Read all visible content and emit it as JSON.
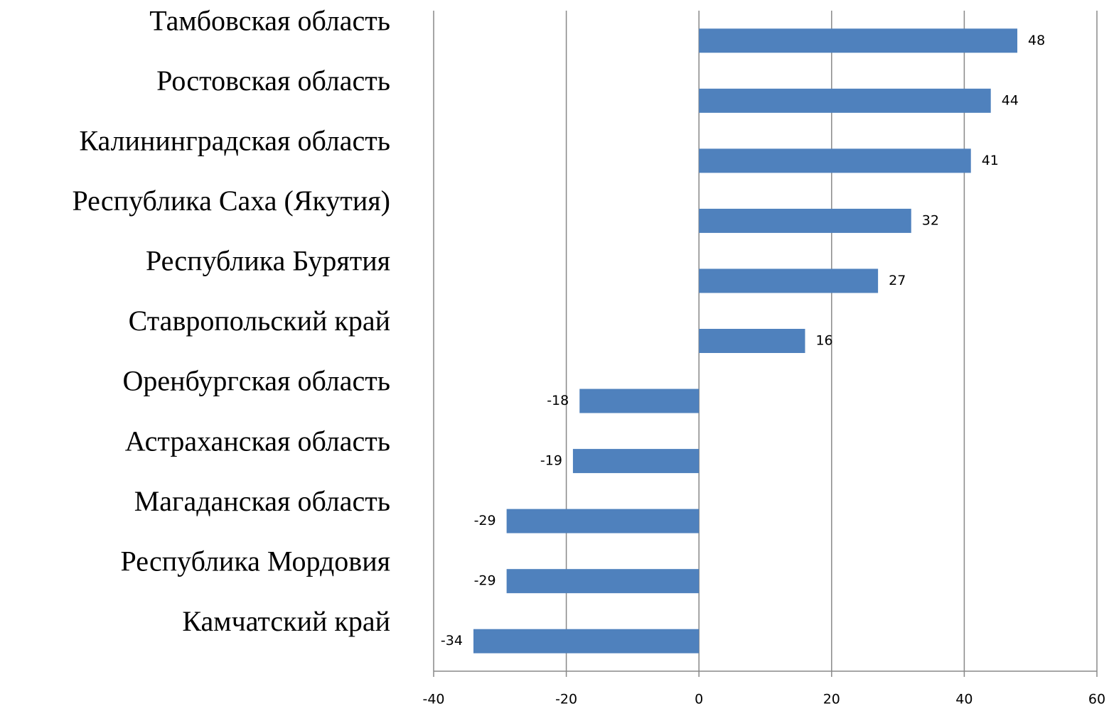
{
  "chart_data": {
    "type": "barh",
    "categories": [
      "Тамбовская область",
      "Ростовская область",
      "Калининградская область",
      "Республика Саха (Якутия)",
      "Республика Бурятия",
      "Ставропольский край",
      "Оренбургская область",
      "Астраханская область",
      "Магаданская область",
      "Республика Мордовия",
      "Камчатский край"
    ],
    "values": [
      48,
      44,
      41,
      32,
      27,
      16,
      -18,
      -19,
      -29,
      -29,
      -34
    ],
    "color": "#4f81bd",
    "xlim": [
      -40,
      60
    ],
    "xticks": [
      -40,
      -20,
      0,
      20,
      40,
      60
    ],
    "grid": true
  }
}
